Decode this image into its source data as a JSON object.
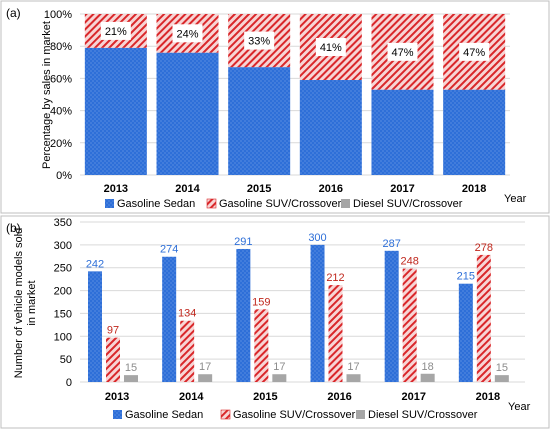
{
  "colors": {
    "sedan": "#2E6FD8",
    "suv_stripe": "#D9272A",
    "suv_bg": "#F7D5D5",
    "diesel": "#A6A6A6",
    "grid": "#D9D9D9",
    "sedan_label": "#2E6FD8",
    "suv_label": "#C0281E",
    "diesel_label": "#8C8C8C"
  },
  "legend_labels": [
    "Gasoline Sedan",
    "Gasoline SUV/Crossover",
    "Diesel SUV/Crossover"
  ],
  "chart_data": [
    {
      "panel": "(a)",
      "type": "bar",
      "stacked": true,
      "categories": [
        "2013",
        "2014",
        "2015",
        "2016",
        "2017",
        "2018"
      ],
      "series": [
        {
          "name": "Gasoline Sedan",
          "values": [
            79,
            76,
            67,
            59,
            53,
            53
          ]
        },
        {
          "name": "Gasoline SUV/Crossover",
          "values": [
            21,
            24,
            33,
            41,
            47,
            47
          ]
        }
      ],
      "data_labels": [
        "21%",
        "24%",
        "33%",
        "41%",
        "47%",
        "47%"
      ],
      "ylabel": "Percentage by sales in market",
      "xlabel": "Year",
      "ylim": [
        0,
        100
      ],
      "yticks": [
        "0%",
        "20%",
        "40%",
        "60%",
        "80%",
        "100%"
      ],
      "grid": true,
      "legend": "bottom"
    },
    {
      "panel": "(b)",
      "type": "bar",
      "categories": [
        "2013",
        "2014",
        "2015",
        "2016",
        "2017",
        "2018"
      ],
      "series": [
        {
          "name": "Gasoline Sedan",
          "values": [
            242,
            274,
            291,
            300,
            287,
            215
          ]
        },
        {
          "name": "Gasoline SUV/Crossover",
          "values": [
            97,
            134,
            159,
            212,
            248,
            278
          ]
        },
        {
          "name": "Diesel SUV/Crossover",
          "values": [
            15,
            17,
            17,
            17,
            18,
            15
          ]
        }
      ],
      "ylabel": "Number of vehicle models sold in market",
      "xlabel": "Year",
      "ylim": [
        0,
        350
      ],
      "yticks": [
        "0",
        "50",
        "100",
        "150",
        "200",
        "250",
        "300",
        "350"
      ],
      "grid": true,
      "legend": "bottom"
    }
  ]
}
